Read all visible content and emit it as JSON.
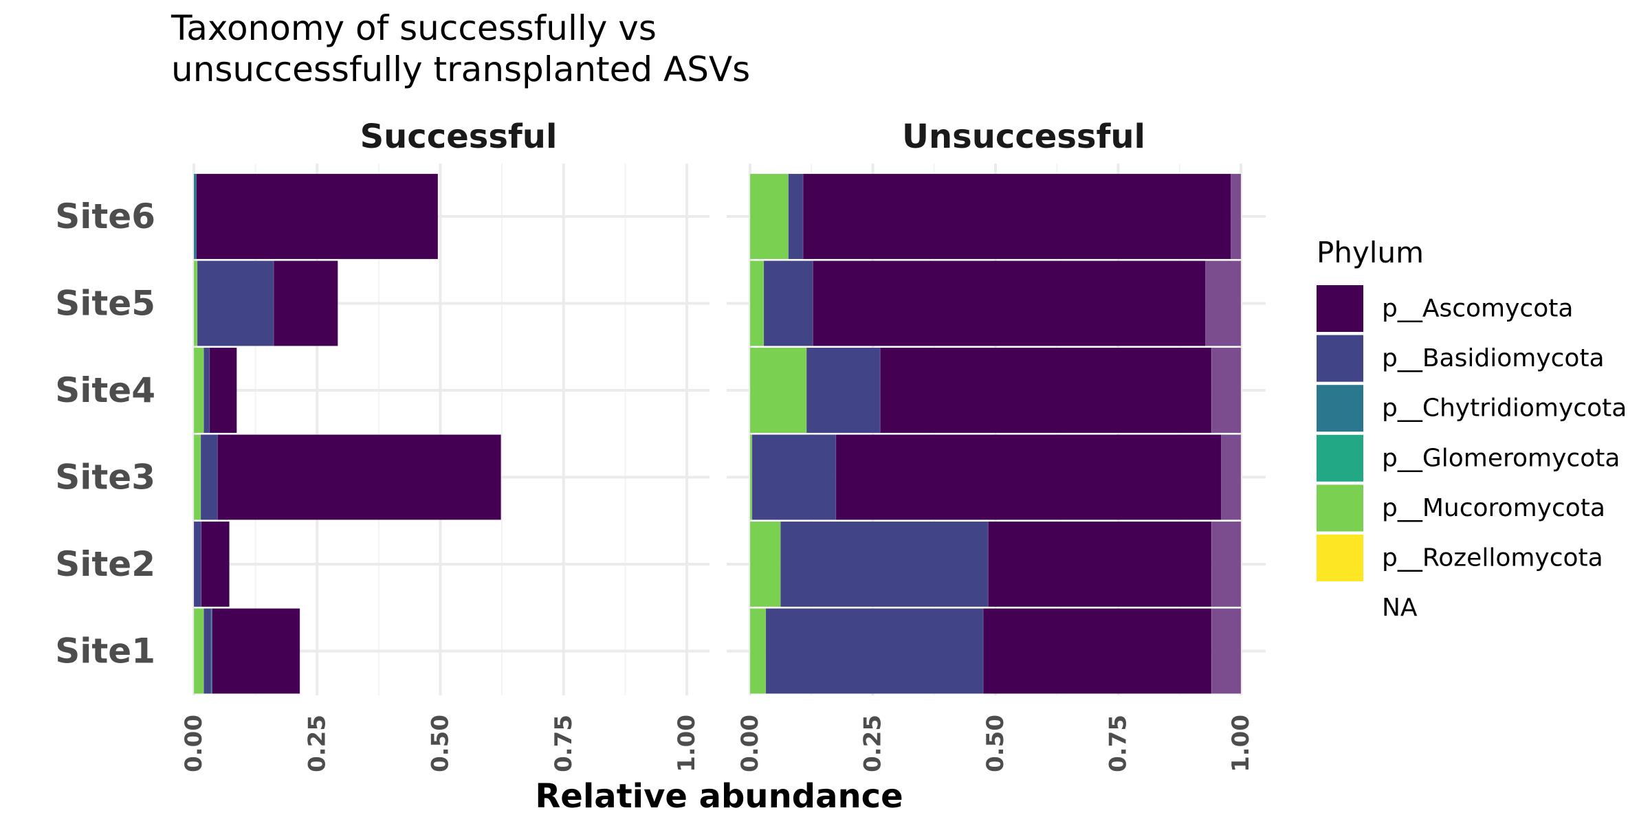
{
  "chart_data": {
    "type": "bar",
    "orientation": "horizontal",
    "stacked": true,
    "title": "Taxonomy of successfully vs\nunsuccessfully transplanted ASVs",
    "xlabel": "Relative abundance",
    "ylabel": "",
    "xlim": [
      0,
      1
    ],
    "x_ticks": [
      "0.00",
      "0.25",
      "0.50",
      "0.75",
      "1.00"
    ],
    "x_tick_values": [
      0,
      0.25,
      0.5,
      0.75,
      1.0
    ],
    "grid": true,
    "categories": [
      "Site1",
      "Site2",
      "Site3",
      "Site4",
      "Site5",
      "Site6"
    ],
    "legend": {
      "title": "Phylum",
      "placement": "right",
      "entries": [
        {
          "label": "p__Ascomycota",
          "color": "#440154"
        },
        {
          "label": "p__Basidiomycota",
          "color": "#414487"
        },
        {
          "label": "p__Chytridiomycota",
          "color": "#2A788E"
        },
        {
          "label": "p__Glomeromycota",
          "color": "#22A884"
        },
        {
          "label": "p__Mucoromycota",
          "color": "#7AD151"
        },
        {
          "label": "p__Rozellomycota",
          "color": "#FDE725"
        },
        {
          "label": "NA",
          "color": "#7C4D8E"
        }
      ]
    },
    "panels": [
      {
        "title": "Successful",
        "rows": [
          {
            "category": "Site1",
            "segments": [
              [
                "p__Mucoromycota",
                0.02
              ],
              [
                "p__Basidiomycota",
                0.015
              ],
              [
                "p__Chytridiomycota",
                0.002
              ],
              [
                "p__Ascomycota",
                0.178
              ]
            ]
          },
          {
            "category": "Site2",
            "segments": [
              [
                "p__Basidiomycota",
                0.015
              ],
              [
                "p__Ascomycota",
                0.057
              ]
            ]
          },
          {
            "category": "Site3",
            "segments": [
              [
                "p__Mucoromycota",
                0.014
              ],
              [
                "p__Basidiomycota",
                0.034
              ],
              [
                "p__Ascomycota",
                0.575
              ]
            ]
          },
          {
            "category": "Site4",
            "segments": [
              [
                "p__Mucoromycota",
                0.02
              ],
              [
                "p__Basidiomycota",
                0.012
              ],
              [
                "p__Ascomycota",
                0.055
              ]
            ]
          },
          {
            "category": "Site5",
            "segments": [
              [
                "p__Mucoromycota",
                0.007
              ],
              [
                "p__Basidiomycota",
                0.155
              ],
              [
                "p__Ascomycota",
                0.13
              ]
            ]
          },
          {
            "category": "Site6",
            "segments": [
              [
                "p__Chytridiomycota",
                0.005
              ],
              [
                "p__Ascomycota",
                0.49
              ]
            ]
          }
        ]
      },
      {
        "title": "Unsuccessful",
        "rows": [
          {
            "category": "Site1",
            "segments": [
              [
                "p__Mucoromycota",
                0.032
              ],
              [
                "p__Basidiomycota",
                0.443
              ],
              [
                "p__Ascomycota",
                0.465
              ],
              [
                "NA",
                0.06
              ]
            ]
          },
          {
            "category": "Site2",
            "segments": [
              [
                "p__Mucoromycota",
                0.062
              ],
              [
                "p__Basidiomycota",
                0.423
              ],
              [
                "p__Ascomycota",
                0.455
              ],
              [
                "NA",
                0.06
              ]
            ]
          },
          {
            "category": "Site3",
            "segments": [
              [
                "p__Mucoromycota",
                0.004
              ],
              [
                "p__Basidiomycota",
                0.171
              ],
              [
                "p__Ascomycota",
                0.785
              ],
              [
                "NA",
                0.04
              ]
            ]
          },
          {
            "category": "Site4",
            "segments": [
              [
                "p__Mucoromycota",
                0.115
              ],
              [
                "p__Basidiomycota",
                0.15
              ],
              [
                "p__Ascomycota",
                0.675
              ],
              [
                "NA",
                0.06
              ]
            ]
          },
          {
            "category": "Site5",
            "segments": [
              [
                "p__Mucoromycota",
                0.028
              ],
              [
                "p__Basidiomycota",
                0.1
              ],
              [
                "p__Ascomycota",
                0.8
              ],
              [
                "NA",
                0.072
              ]
            ]
          },
          {
            "category": "Site6",
            "segments": [
              [
                "p__Mucoromycota",
                0.078
              ],
              [
                "p__Basidiomycota",
                0.03
              ],
              [
                "p__Ascomycota",
                0.872
              ],
              [
                "NA",
                0.02
              ]
            ]
          }
        ]
      }
    ]
  }
}
